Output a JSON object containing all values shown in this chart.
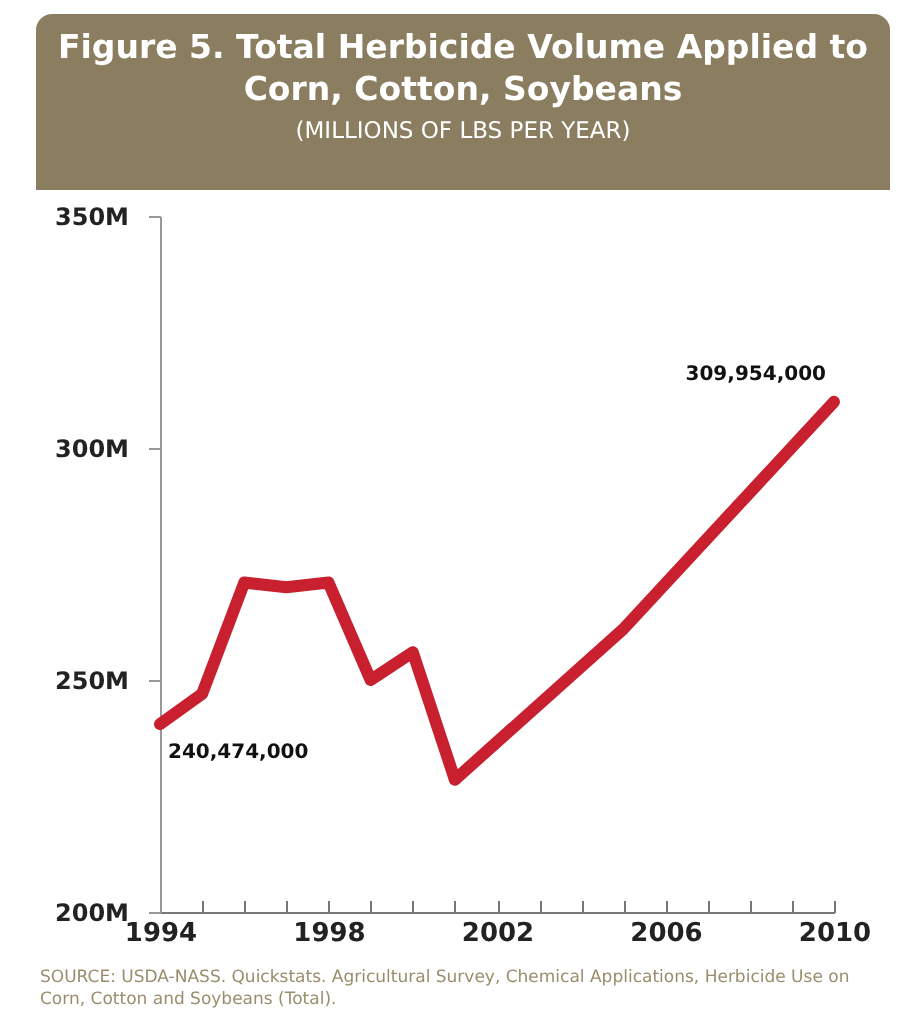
{
  "chart_data": {
    "type": "line",
    "title": "Figure 5. Total Herbicide Volume Applied to Corn, Cotton, Soybeans",
    "subtitle": "(MILLIONS OF LBS PER YEAR)",
    "annotations": [
      "SOURCE: USDA-NASS. Quickstats. Agricultural Survey, Chemical Applications, Herbicide Use on Corn, Cotton and Soybeans (Total)."
    ],
    "x": [
      1994,
      1995,
      1996,
      1997,
      1998,
      1999,
      2000,
      2001,
      2005,
      2010
    ],
    "series": [
      {
        "color": "#c8202f",
        "values": [
          240474000,
          247000000,
          271000000,
          270000000,
          271000000,
          250000000,
          256000000,
          228500000,
          261000000,
          309954000
        ],
        "value_labels": [
          "240,474,000",
          null,
          null,
          null,
          null,
          null,
          null,
          null,
          null,
          "309,954,000"
        ]
      }
    ],
    "xlim": [
      1994,
      2010
    ],
    "xticks": [
      1994,
      {
        "value": 1995,
        "label": null
      },
      {
        "value": 1996,
        "label": null
      },
      {
        "value": 1997,
        "label": null
      },
      1998,
      {
        "value": 1999,
        "label": null
      },
      {
        "value": 2000,
        "label": null
      },
      {
        "value": 2001,
        "label": null
      },
      2002,
      {
        "value": 2003,
        "label": null
      },
      {
        "value": 2004,
        "label": null
      },
      {
        "value": 2005,
        "label": null
      },
      2006,
      {
        "value": 2007,
        "label": null
      },
      {
        "value": 2008,
        "label": null
      },
      {
        "value": 2009,
        "label": null
      },
      2010
    ],
    "ylim": [
      200000000,
      350000000
    ],
    "yticks": [
      {
        "value": 200000000,
        "label": "200M"
      },
      {
        "value": 250000000,
        "label": "250M"
      },
      {
        "value": 300000000,
        "label": "300M"
      },
      {
        "value": 350000000,
        "label": "350M"
      }
    ],
    "grid": false,
    "marker": "none",
    "line_style": "solid"
  }
}
